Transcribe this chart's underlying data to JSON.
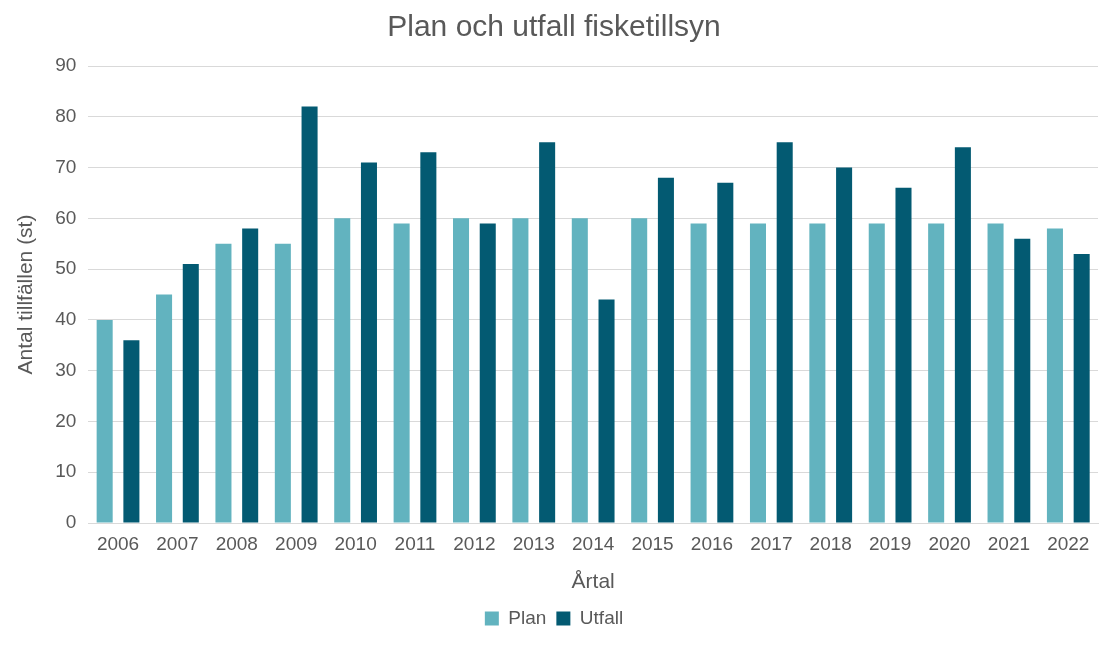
{
  "chart_data": {
    "type": "bar",
    "title": "Plan och utfall fisketillsyn",
    "xlabel": "Årtal",
    "ylabel": "Antal tillfällen (st)",
    "categories": [
      "2006",
      "2007",
      "2008",
      "2009",
      "2010",
      "2011",
      "2012",
      "2013",
      "2014",
      "2015",
      "2016",
      "2017",
      "2018",
      "2019",
      "2020",
      "2021",
      "2022"
    ],
    "series": [
      {
        "name": "Plan",
        "color": "#62b3bf",
        "values": [
          40,
          45,
          55,
          55,
          60,
          59,
          60,
          60,
          60,
          60,
          59,
          59,
          59,
          59,
          59,
          59,
          58
        ]
      },
      {
        "name": "Utfall",
        "color": "#035a72",
        "values": [
          36,
          51,
          58,
          82,
          71,
          73,
          59,
          75,
          44,
          68,
          67,
          75,
          70,
          66,
          74,
          56,
          53
        ]
      }
    ],
    "ylim": [
      0,
      90
    ],
    "yticks": [
      0,
      10,
      20,
      30,
      40,
      50,
      60,
      70,
      80,
      90
    ],
    "grid": "y",
    "legend": "bottom"
  }
}
